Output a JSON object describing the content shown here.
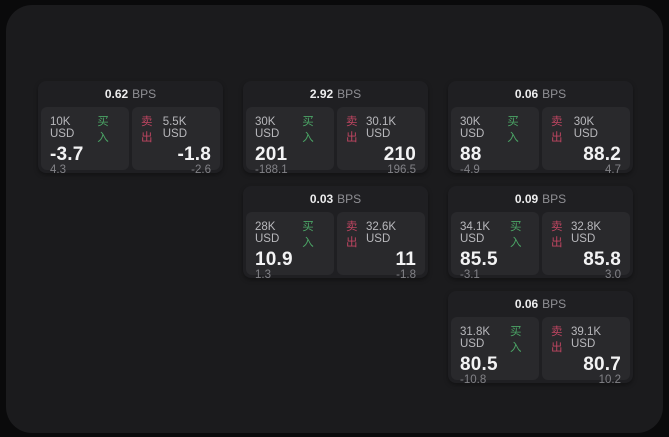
{
  "labels": {
    "bps_unit": "BPS",
    "buy": "买入",
    "sell": "卖出"
  },
  "colors": {
    "buy": "#4ba566",
    "sell": "#bf4561",
    "panel_bg": "#1b1b1d",
    "card_bg": "#1f1f22",
    "subpanel_bg": "#29292c"
  },
  "cards": [
    {
      "row": 1,
      "col": 1,
      "bps": "0.62",
      "buy": {
        "amount": "10K USD",
        "price": "-3.7",
        "delta": "4.3"
      },
      "sell": {
        "amount": "5.5K USD",
        "price": "-1.8",
        "delta": "-2.6"
      }
    },
    {
      "row": 1,
      "col": 2,
      "bps": "2.92",
      "buy": {
        "amount": "30K USD",
        "price": "201",
        "delta": "-188.1"
      },
      "sell": {
        "amount": "30.1K USD",
        "price": "210",
        "delta": "196.5"
      }
    },
    {
      "row": 1,
      "col": 3,
      "bps": "0.06",
      "buy": {
        "amount": "30K USD",
        "price": "88",
        "delta": "-4.9"
      },
      "sell": {
        "amount": "30K USD",
        "price": "88.2",
        "delta": "4.7"
      }
    },
    {
      "row": 2,
      "col": 2,
      "bps": "0.03",
      "buy": {
        "amount": "28K USD",
        "price": "10.9",
        "delta": "1.3"
      },
      "sell": {
        "amount": "32.6K USD",
        "price": "11",
        "delta": "-1.8"
      }
    },
    {
      "row": 2,
      "col": 3,
      "bps": "0.09",
      "buy": {
        "amount": "34.1K USD",
        "price": "85.5",
        "delta": "-3.1"
      },
      "sell": {
        "amount": "32.8K USD",
        "price": "85.8",
        "delta": "3.0"
      }
    },
    {
      "row": 3,
      "col": 3,
      "bps": "0.06",
      "buy": {
        "amount": "31.8K USD",
        "price": "80.5",
        "delta": "-10.8"
      },
      "sell": {
        "amount": "39.1K USD",
        "price": "80.7",
        "delta": "10.2"
      }
    }
  ]
}
